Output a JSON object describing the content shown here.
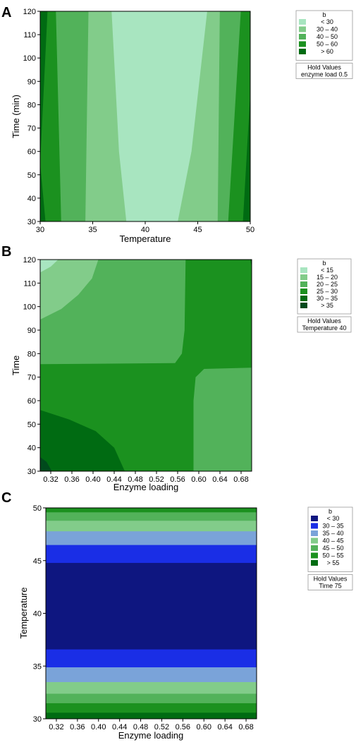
{
  "chart_data": [
    {
      "panel": "A",
      "type": "heatmap",
      "xlabel": "Temperature",
      "ylabel": "Time (min)",
      "xlim": [
        30,
        50
      ],
      "ylim": [
        30,
        120
      ],
      "xticks": [
        "30",
        "35",
        "40",
        "45",
        "50"
      ],
      "yticks": [
        "30",
        "40",
        "50",
        "60",
        "70",
        "80",
        "90",
        "100",
        "110",
        "120"
      ],
      "legend": {
        "title": "b",
        "items": [
          {
            "label": "< 30",
            "color": "#a8e5c0"
          },
          {
            "label": "30 – 40",
            "color": "#82cc8a"
          },
          {
            "label": "40 – 50",
            "color": "#52b25a"
          },
          {
            "label": "50 – 60",
            "color": "#1b911f"
          },
          {
            "label": "> 60",
            "color": "#006b12"
          }
        ],
        "hold_title": "Hold Values",
        "hold_value": "enzyme load  0.5"
      },
      "contours": [
        {
          "color": "#006b12",
          "points": [
            [
              30,
              30
            ],
            [
              50,
              30
            ],
            [
              50,
              120
            ],
            [
              30,
              120
            ]
          ]
        },
        {
          "color": "#1b911f",
          "points": [
            [
              30.5,
              30
            ],
            [
              49.3,
              30
            ],
            [
              50,
              85
            ],
            [
              50,
              120
            ],
            [
              30.7,
              120
            ],
            [
              30,
              55
            ]
          ]
        },
        {
          "color": "#52b25a",
          "points": [
            [
              32,
              30
            ],
            [
              47.9,
              30
            ],
            [
              49.1,
              120
            ],
            [
              31.5,
              120
            ]
          ]
        },
        {
          "color": "#82cc8a",
          "points": [
            [
              34.3,
              30
            ],
            [
              46.9,
              30
            ],
            [
              47.1,
              120
            ],
            [
              34.6,
              120
            ]
          ]
        },
        {
          "color": "#a8e5c0",
          "points": [
            [
              38.2,
              30
            ],
            [
              43.1,
              30
            ],
            [
              44.4,
              60
            ],
            [
              45.9,
              120
            ],
            [
              36.8,
              120
            ],
            [
              37.5,
              60
            ]
          ]
        }
      ]
    },
    {
      "panel": "B",
      "type": "heatmap",
      "xlabel": "Enzyme loading",
      "ylabel": "Time",
      "xlim": [
        0.3,
        0.7
      ],
      "ylim": [
        30,
        120
      ],
      "xticks": [
        "0.32",
        "0.36",
        "0.40",
        "0.44",
        "0.48",
        "0.52",
        "0.56",
        "0.60",
        "0.64",
        "0.68"
      ],
      "yticks": [
        "30",
        "40",
        "50",
        "60",
        "70",
        "80",
        "90",
        "100",
        "110",
        "120"
      ],
      "legend": {
        "title": "b",
        "items": [
          {
            "label": "< 15",
            "color": "#a8e5c0"
          },
          {
            "label": "15 – 20",
            "color": "#82cc8a"
          },
          {
            "label": "20 – 25",
            "color": "#52b25a"
          },
          {
            "label": "25 – 30",
            "color": "#1b911f"
          },
          {
            "label": "30 – 35",
            "color": "#006b12"
          },
          {
            "label": "> 35",
            "color": "#004a1c"
          }
        ],
        "hold_title": "Hold Values",
        "hold_value": "Temperature  40"
      },
      "contours": [
        {
          "color": "#1b911f",
          "points": [
            [
              0.3,
              30
            ],
            [
              0.7,
              30
            ],
            [
              0.7,
              120
            ],
            [
              0.3,
              120
            ]
          ]
        },
        {
          "color": "#52b25a",
          "points": [
            [
              0.3,
              75.5
            ],
            [
              0.555,
              76
            ],
            [
              0.568,
              80
            ],
            [
              0.573,
              90
            ],
            [
              0.575,
              120
            ],
            [
              0.3,
              120
            ]
          ]
        },
        {
          "color": "#82cc8a",
          "points": [
            [
              0.3,
              94.5
            ],
            [
              0.34,
              99
            ],
            [
              0.372,
              105
            ],
            [
              0.398,
              112
            ],
            [
              0.41,
              120
            ],
            [
              0.3,
              120
            ]
          ]
        },
        {
          "color": "#a8e5c0",
          "points": [
            [
              0.3,
              114.5
            ],
            [
              0.32,
              117
            ],
            [
              0.334,
              120
            ],
            [
              0.3,
              120
            ]
          ]
        },
        {
          "color": "#52b25a",
          "points": [
            [
              0.59,
              30
            ],
            [
              0.7,
              30
            ],
            [
              0.7,
              74
            ],
            [
              0.61,
              73.5
            ],
            [
              0.594,
              70
            ],
            [
              0.59,
              60
            ]
          ]
        },
        {
          "color": "#006b12",
          "points": [
            [
              0.3,
              30
            ],
            [
              0.46,
              30
            ],
            [
              0.44,
              40
            ],
            [
              0.405,
              47
            ],
            [
              0.355,
              52
            ],
            [
              0.3,
              56
            ]
          ]
        },
        {
          "color": "#004a1c",
          "points": [
            [
              0.3,
              30
            ],
            [
              0.322,
              30
            ],
            [
              0.312,
              34
            ],
            [
              0.3,
              36
            ]
          ]
        },
        {
          "color": "#006b12",
          "points": [
            [
              0.697,
              120
            ],
            [
              0.7,
              120
            ],
            [
              0.7,
              117
            ]
          ]
        }
      ]
    },
    {
      "panel": "C",
      "type": "heatmap",
      "xlabel": "Enzyme loading",
      "ylabel": "Temperature",
      "xlim": [
        0.3,
        0.7
      ],
      "ylim": [
        30,
        50
      ],
      "xticks": [
        "0.32",
        "0.36",
        "0.40",
        "0.44",
        "0.48",
        "0.52",
        "0.56",
        "0.60",
        "0.64",
        "0.68"
      ],
      "yticks": [
        "30",
        "35",
        "40",
        "45",
        "50"
      ],
      "legend": {
        "title": "b",
        "items": [
          {
            "label": "< 30",
            "color": "#0e1680"
          },
          {
            "label": "30 – 35",
            "color": "#1a2ee6"
          },
          {
            "label": "35 – 40",
            "color": "#7aa3d9"
          },
          {
            "label": "40 – 45",
            "color": "#82cc8a"
          },
          {
            "label": "45 – 50",
            "color": "#52b25a"
          },
          {
            "label": "50 – 55",
            "color": "#1b911f"
          },
          {
            "label": "> 55",
            "color": "#006b12"
          }
        ],
        "hold_title": "Hold Values",
        "hold_value": "Time  75"
      },
      "bands": [
        {
          "from": 30.0,
          "to": 30.6,
          "color": "#006b12"
        },
        {
          "from": 30.6,
          "to": 31.5,
          "color": "#1b911f"
        },
        {
          "from": 31.5,
          "to": 32.4,
          "color": "#52b25a"
        },
        {
          "from": 32.4,
          "to": 33.5,
          "color": "#82cc8a"
        },
        {
          "from": 33.5,
          "to": 34.9,
          "color": "#7aa3d9"
        },
        {
          "from": 34.9,
          "to": 36.6,
          "color": "#1a2ee6"
        },
        {
          "from": 36.6,
          "to": 44.8,
          "color": "#0e1680"
        },
        {
          "from": 44.8,
          "to": 46.5,
          "color": "#1a2ee6"
        },
        {
          "from": 46.5,
          "to": 47.8,
          "color": "#7aa3d9"
        },
        {
          "from": 47.8,
          "to": 48.8,
          "color": "#82cc8a"
        },
        {
          "from": 48.8,
          "to": 49.6,
          "color": "#52b25a"
        },
        {
          "from": 49.6,
          "to": 50.0,
          "color": "#1b911f"
        }
      ]
    }
  ]
}
